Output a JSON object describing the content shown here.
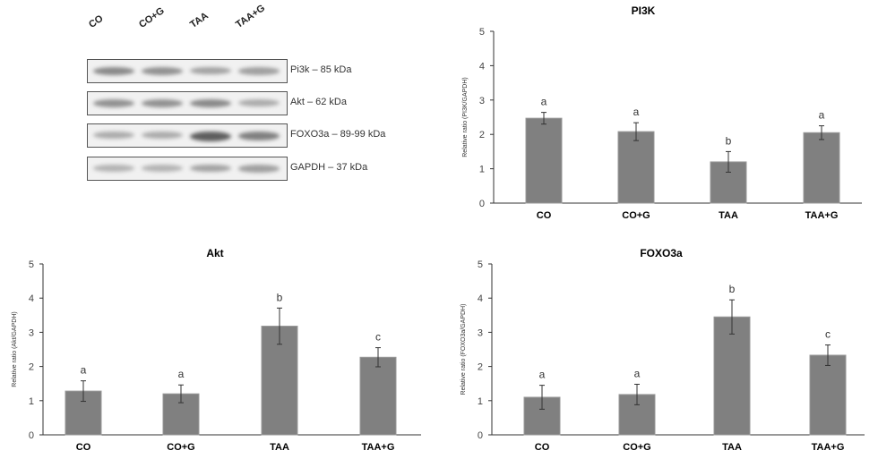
{
  "blot": {
    "lanes": [
      "CO",
      "CO+G",
      "TAA",
      "TAA+G"
    ],
    "rows": [
      {
        "label": "Pi3k – 85 kDa",
        "intensity": [
          0.55,
          0.5,
          0.4,
          0.42
        ]
      },
      {
        "label": "Akt – 62 kDa",
        "intensity": [
          0.5,
          0.5,
          0.55,
          0.35
        ]
      },
      {
        "label": "FOXO3a – 89-99 kDa",
        "intensity": [
          0.35,
          0.35,
          0.8,
          0.6
        ]
      },
      {
        "label": "GAPDH – 37 kDa",
        "intensity": [
          0.3,
          0.3,
          0.4,
          0.42
        ]
      }
    ]
  },
  "chart_data": [
    {
      "type": "bar",
      "title": "PI3K",
      "ylabel": "Relative ratio (PI3K/GAPDH)",
      "xlabel": "",
      "categories": [
        "CO",
        "CO+G",
        "TAA",
        "TAA+G"
      ],
      "values": [
        2.47,
        2.08,
        1.2,
        2.05
      ],
      "errors": [
        0.17,
        0.26,
        0.3,
        0.2
      ],
      "significance": [
        "a",
        "a",
        "b",
        "a"
      ],
      "ylim": [
        0,
        5
      ],
      "yticks": [
        "0",
        "1",
        "2",
        "3",
        "4",
        "5"
      ],
      "grid": false,
      "color": "#808080"
    },
    {
      "type": "bar",
      "title": "Akt",
      "ylabel": "Relative ratio (Akt/GAPDH)",
      "xlabel": "",
      "categories": [
        "CO",
        "CO+G",
        "TAA",
        "TAA+G"
      ],
      "values": [
        1.28,
        1.2,
        3.18,
        2.27
      ],
      "errors": [
        0.3,
        0.26,
        0.53,
        0.28
      ],
      "significance": [
        "a",
        "a",
        "b",
        "c"
      ],
      "ylim": [
        0,
        5
      ],
      "yticks": [
        "0",
        "1",
        "2",
        "3",
        "4",
        "5"
      ],
      "grid": false,
      "color": "#808080"
    },
    {
      "type": "bar",
      "title": "FOXO3a",
      "ylabel": "Relative ratio (FOXO3a/GAPDH)",
      "xlabel": "",
      "categories": [
        "CO",
        "CO+G",
        "TAA",
        "TAA+G"
      ],
      "values": [
        1.1,
        1.18,
        3.45,
        2.33
      ],
      "errors": [
        0.35,
        0.3,
        0.5,
        0.3
      ],
      "significance": [
        "a",
        "a",
        "b",
        "c"
      ],
      "ylim": [
        0,
        5
      ],
      "yticks": [
        "0",
        "1",
        "2",
        "3",
        "4",
        "5"
      ],
      "grid": false,
      "color": "#808080"
    }
  ]
}
